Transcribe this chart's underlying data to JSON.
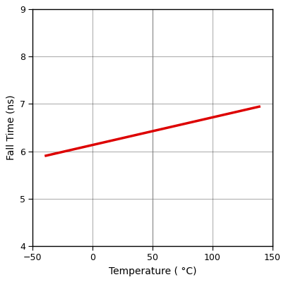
{
  "title": "",
  "xlabel": "Temperature ( °C)",
  "ylabel": "Fall Time (ns)",
  "xlim": [
    -50,
    150
  ],
  "ylim": [
    4,
    9
  ],
  "xticks": [
    -50,
    0,
    50,
    100,
    150
  ],
  "yticks": [
    4,
    5,
    6,
    7,
    8,
    9
  ],
  "x_data": [
    -40,
    140
  ],
  "y_data": [
    5.9,
    6.95
  ],
  "line_color": "#dd0000",
  "line_width": 2.5,
  "grid_color": "#000000",
  "grid_linewidth": 0.6,
  "grid_alpha": 0.4,
  "special_vgrid_x": 50,
  "special_vgrid_color": "#888888",
  "special_vgrid_linewidth": 1.0,
  "bg_color": "#ffffff",
  "tick_label_fontsize": 9,
  "axis_label_fontsize": 10
}
